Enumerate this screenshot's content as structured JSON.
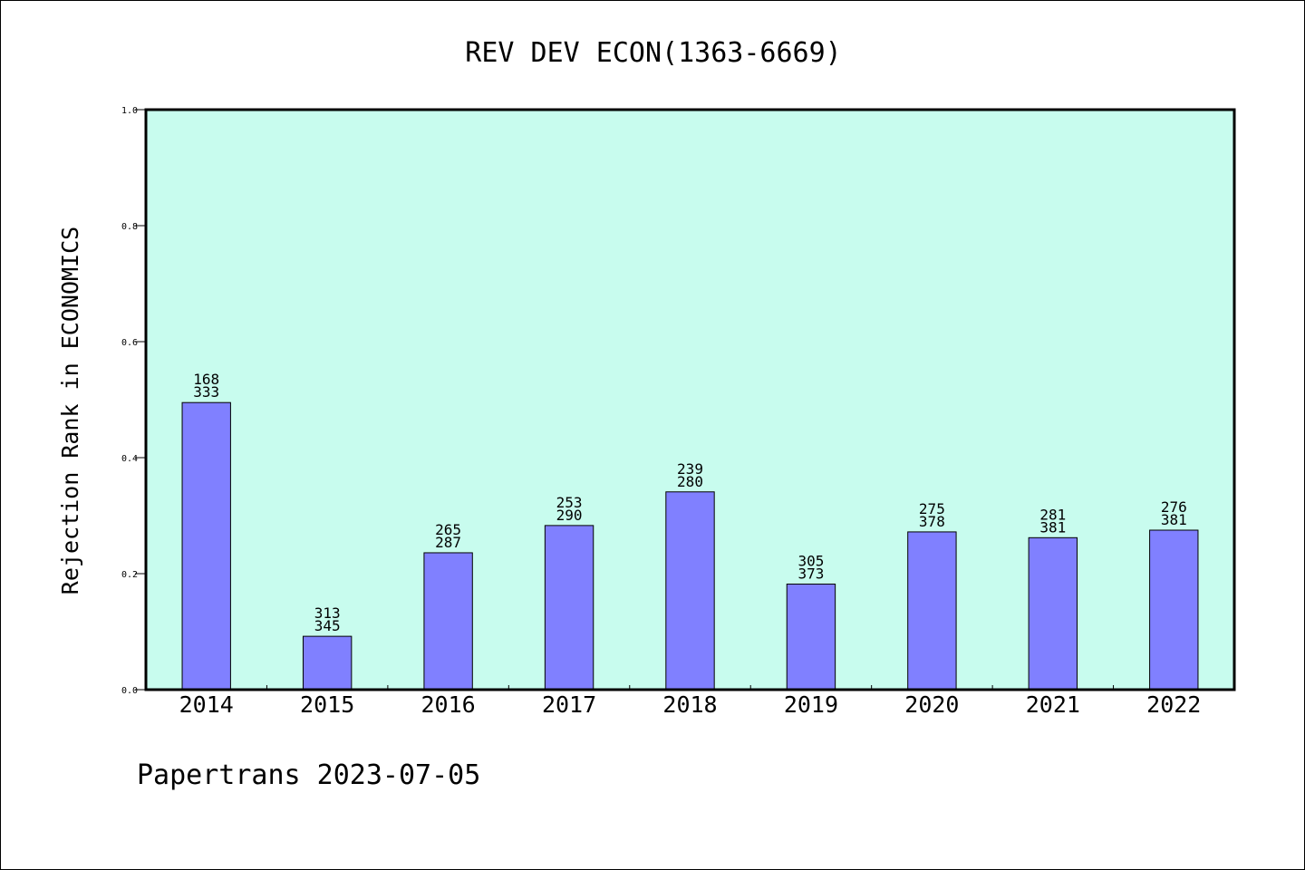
{
  "chart_data": {
    "type": "bar",
    "title": "REV DEV ECON(1363-6669)",
    "xlabel": "",
    "ylabel": "Rejection Rank in ECONOMICS",
    "ylim": [
      0,
      1.0
    ],
    "yticks": [
      "0.0",
      "0.2",
      "0.4",
      "0.6",
      "0.8",
      "1.0"
    ],
    "categories": [
      "2014",
      "2015",
      "2016",
      "2017",
      "2018",
      "2019",
      "2020",
      "2021",
      "2022"
    ],
    "values": [
      0.495,
      0.092,
      0.236,
      0.283,
      0.341,
      0.182,
      0.272,
      0.262,
      0.275
    ],
    "bar_labels": [
      {
        "top": "168",
        "bottom": "333"
      },
      {
        "top": "313",
        "bottom": "345"
      },
      {
        "top": "265",
        "bottom": "287"
      },
      {
        "top": "253",
        "bottom": "290"
      },
      {
        "top": "239",
        "bottom": "280"
      },
      {
        "top": "305",
        "bottom": "373"
      },
      {
        "top": "275",
        "bottom": "378"
      },
      {
        "top": "281",
        "bottom": "381"
      },
      {
        "top": "276",
        "bottom": "381"
      }
    ],
    "grid": false,
    "colors": {
      "plot_background": "#c8fcee",
      "bar_fill": "#8080ff",
      "bar_stroke": "#000000"
    }
  },
  "footer": {
    "text": "Papertrans 2023-07-05"
  }
}
